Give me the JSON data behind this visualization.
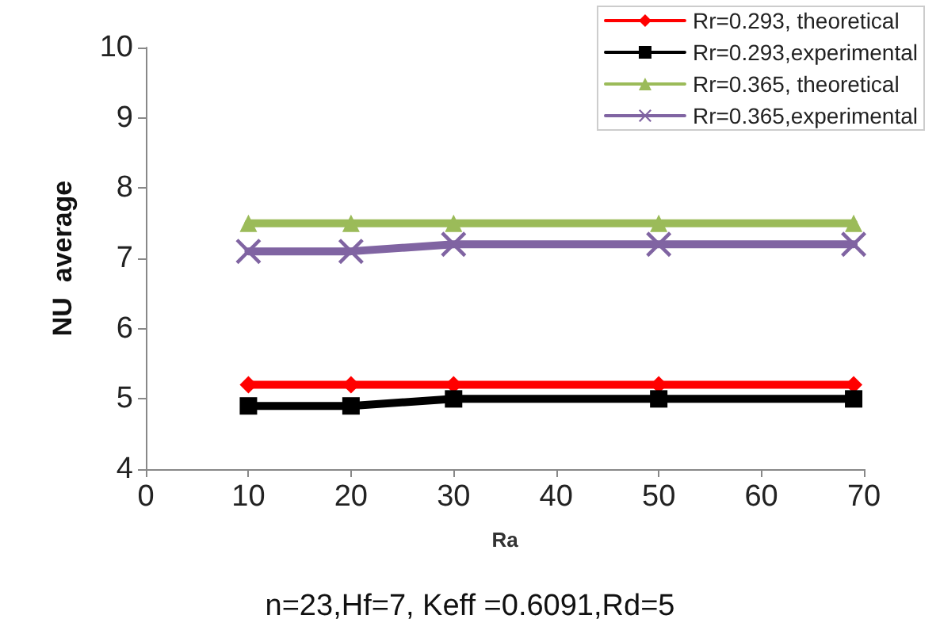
{
  "chart_data": {
    "type": "line",
    "xlabel": "Ra",
    "ylabel": "NU  average",
    "annotations": [
      "n=23,Hf=7, Keff =0.6091,Rd=5"
    ],
    "x": [
      10,
      20,
      30,
      50,
      69
    ],
    "series": [
      {
        "name": "Rr=0.293, theoretical",
        "color": "#ff0000",
        "marker": "diamond",
        "values": [
          5.2,
          5.2,
          5.2,
          5.2,
          5.2
        ]
      },
      {
        "name": "Rr=0.293,experimental",
        "color": "#000000",
        "marker": "square",
        "values": [
          4.9,
          4.9,
          5.0,
          5.0,
          5.0
        ]
      },
      {
        "name": "Rr=0.365, theoretical",
        "color": "#9bbb59",
        "marker": "triangle",
        "values": [
          7.5,
          7.5,
          7.5,
          7.5,
          7.5
        ]
      },
      {
        "name": "Rr=0.365,experimental",
        "color": "#8064a2",
        "marker": "cross",
        "values": [
          7.1,
          7.1,
          7.2,
          7.2,
          7.2
        ]
      }
    ],
    "xlim": [
      0,
      70
    ],
    "xticks": [
      0,
      10,
      20,
      30,
      40,
      50,
      60,
      70
    ],
    "ylim": [
      4,
      10
    ],
    "yticks": [
      4,
      5,
      6,
      7,
      8,
      9,
      10
    ],
    "grid": false,
    "legend": "top right"
  }
}
